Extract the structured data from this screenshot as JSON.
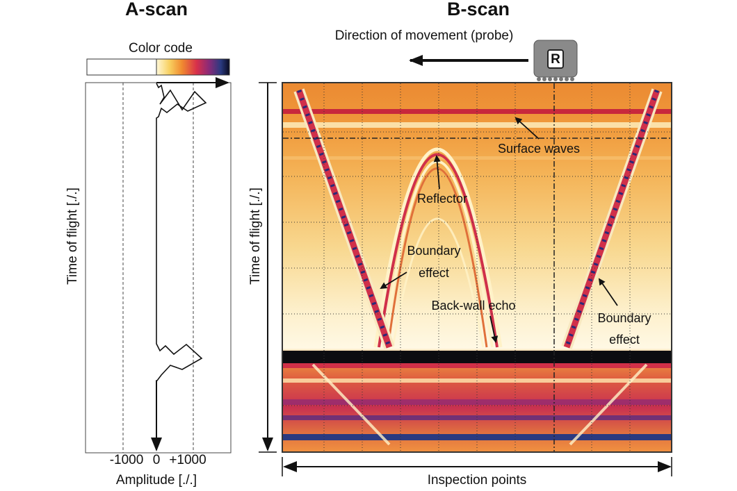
{
  "a_scan": {
    "title": "A-scan",
    "color_code_label": "Color code",
    "y_axis_label": "Time of flight [./.]",
    "x_axis_label": "Amplitude [./.]",
    "x_tick_labels": [
      "-1000",
      "0",
      "+1000"
    ]
  },
  "b_scan": {
    "title": "B-scan",
    "direction_label": "Direction of movement (probe)",
    "probe_label": "R",
    "y_axis_label": "Time of flight [./.]",
    "x_axis_label": "Inspection points",
    "annotations": {
      "surface_waves": "Surface waves",
      "reflector": "Reflector",
      "boundary_effect_left": [
        "Boundary",
        "effect"
      ],
      "back_wall_echo": "Back-wall echo",
      "boundary_effect_right": [
        "Boundary",
        "effect"
      ]
    }
  }
}
